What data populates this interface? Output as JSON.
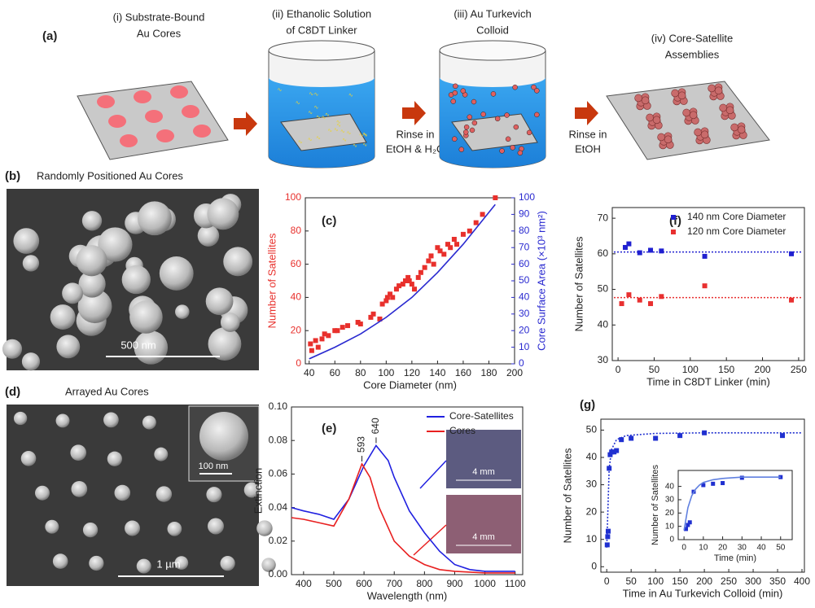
{
  "figure": {
    "a": {
      "panel": "(a)",
      "steps": [
        [
          "(i) Substrate-Bound",
          "Au Cores"
        ],
        [
          "(ii) Ethanolic Solution",
          "of C8DT Linker"
        ],
        [
          "(iii) Au Turkevich",
          "Colloid"
        ],
        [
          "(iv) Core-Satellite",
          "Assemblies"
        ]
      ],
      "rinses": [
        [
          "Rinse in",
          "EtOH & H₂O"
        ],
        [
          "Rinse in",
          "EtOH"
        ]
      ]
    },
    "b": {
      "panel": "(b)",
      "title": "Randomly Positioned Au Cores",
      "scale": "500 nm"
    },
    "d": {
      "panel": "(d)",
      "title": "Arrayed Au Cores",
      "inset_scale": "100 nm",
      "scale": "1 µm"
    }
  },
  "chart_data": [
    {
      "type": "scatter",
      "panel": "(c)",
      "xlabel": "Core Diameter (nm)",
      "ylabel": "Number of Satellites",
      "y2label": "Core Surface Area (×10³ nm²)",
      "ylabel_color": "#e8302c",
      "y2label_color": "#2a2ad0",
      "xlim": [
        37,
        200
      ],
      "xticks": [
        40,
        60,
        80,
        100,
        120,
        140,
        160,
        180,
        200
      ],
      "ylim": [
        0,
        100
      ],
      "yticks": [
        0,
        20,
        40,
        60,
        80,
        100
      ],
      "y2lim": [
        0,
        100
      ],
      "y2ticks": [
        0,
        10,
        20,
        30,
        40,
        50,
        60,
        70,
        80,
        90,
        100
      ],
      "series": [
        {
          "kind": "scatter",
          "color": "#e8302c",
          "x": [
            41,
            42,
            45,
            47,
            50,
            52,
            55,
            60,
            62,
            66,
            70,
            78,
            80,
            88,
            90,
            95,
            97,
            100,
            101,
            103,
            105,
            108,
            110,
            113,
            115,
            117,
            118,
            120,
            122,
            125,
            127,
            130,
            133,
            135,
            137,
            140,
            142,
            145,
            148,
            150,
            153,
            155,
            160,
            165,
            170,
            175,
            185
          ],
          "values": [
            12,
            8,
            14,
            10,
            15,
            18,
            17,
            20,
            20,
            22,
            23,
            25,
            24,
            28,
            30,
            27,
            36,
            38,
            40,
            42,
            40,
            45,
            47,
            48,
            50,
            52,
            50,
            48,
            45,
            52,
            55,
            58,
            62,
            65,
            60,
            70,
            68,
            66,
            72,
            70,
            75,
            72,
            78,
            80,
            85,
            90,
            100
          ]
        },
        {
          "kind": "line",
          "color": "#2a2ad0",
          "axis": "y2",
          "x": [
            40,
            60,
            80,
            100,
            120,
            140,
            160,
            185
          ],
          "values": [
            3,
            10,
            18,
            28,
            40,
            55,
            72,
            96
          ]
        }
      ]
    },
    {
      "type": "line",
      "panel": "(e)",
      "xlabel": "Wavelength (nm)",
      "ylabel": "Extinction",
      "legend": "upper right",
      "xlim": [
        360,
        1125
      ],
      "xticks": [
        400,
        500,
        600,
        700,
        800,
        900,
        1000,
        1100
      ],
      "ylim": [
        0,
        0.1
      ],
      "yticks": [
        {
          "value": 0,
          "label": "0.00"
        },
        {
          "value": 0.02,
          "label": "0.02"
        },
        {
          "value": 0.04,
          "label": "0.04"
        },
        {
          "value": 0.06,
          "label": "0.06"
        },
        {
          "value": 0.08,
          "label": "0.08"
        },
        {
          "value": 0.1,
          "label": "0.10"
        }
      ],
      "series": [
        {
          "name": "Core-Satellites",
          "kind": "line",
          "color": "#2020e0",
          "x": [
            360,
            400,
            450,
            500,
            550,
            600,
            640,
            680,
            700,
            750,
            800,
            850,
            900,
            950,
            1000,
            1100
          ],
          "values": [
            0.04,
            0.038,
            0.036,
            0.033,
            0.045,
            0.065,
            0.077,
            0.068,
            0.058,
            0.038,
            0.025,
            0.014,
            0.006,
            0.003,
            0.002,
            0.002
          ]
        },
        {
          "name": "Cores",
          "kind": "line",
          "color": "#e82020",
          "x": [
            360,
            400,
            450,
            500,
            550,
            593,
            620,
            650,
            700,
            750,
            800,
            850,
            900,
            1000,
            1100
          ],
          "values": [
            0.034,
            0.033,
            0.031,
            0.029,
            0.045,
            0.066,
            0.058,
            0.04,
            0.02,
            0.011,
            0.006,
            0.003,
            0.002,
            0.001,
            0.001
          ]
        }
      ],
      "annotations": [
        {
          "text": "593",
          "x": 593,
          "y": 0.066
        },
        {
          "text": "640",
          "x": 640,
          "y": 0.077
        }
      ],
      "inset_labels": [
        "4 mm",
        "4 mm"
      ]
    },
    {
      "type": "scatter",
      "panel": "(f)",
      "xlabel": "Time in C8DT Linker (min)",
      "ylabel": "Number of Satellites",
      "legend": "upper right",
      "xlim": [
        -8,
        258
      ],
      "xticks": [
        0,
        50,
        100,
        150,
        200,
        250
      ],
      "ylim": [
        30,
        73
      ],
      "yticks": [
        30,
        40,
        50,
        60,
        70
      ],
      "series": [
        {
          "name": "140 nm Core Diameter",
          "kind": "scatter",
          "color": "#2020d0",
          "fit_level": 60.5,
          "x": [
            10,
            15,
            30,
            45,
            60,
            120,
            240
          ],
          "values": [
            61.8,
            62.8,
            60.3,
            61,
            60.8,
            59.3,
            60
          ]
        },
        {
          "name": "120 nm Core Diameter",
          "kind": "scatter",
          "color": "#e83030",
          "fit_level": 47.7,
          "x": [
            5,
            15,
            30,
            45,
            60,
            120,
            240
          ],
          "values": [
            46,
            48.5,
            47,
            46,
            48,
            51,
            47
          ]
        }
      ]
    },
    {
      "type": "scatter",
      "panel": "(g)",
      "xlabel": "Time in Au Turkevich Colloid (min)",
      "ylabel": "Number of Satellites",
      "xlim": [
        -12,
        405
      ],
      "xticks": [
        0,
        50,
        100,
        150,
        200,
        250,
        300,
        350,
        400
      ],
      "ylim": [
        -2,
        54
      ],
      "yticks": [
        0,
        10,
        20,
        30,
        40,
        50
      ],
      "series": [
        {
          "kind": "scatter",
          "color": "#2030d0",
          "x": [
            1,
            2,
            3,
            5,
            7,
            10,
            15,
            20,
            30,
            50,
            100,
            150,
            200,
            360
          ],
          "values": [
            8,
            11,
            13,
            36,
            41,
            42,
            42,
            42.5,
            46.5,
            47,
            47,
            48,
            49,
            48
          ]
        },
        {
          "kind": "line",
          "dash": true,
          "color": "#2030d0",
          "x": [
            0,
            5,
            10,
            20,
            40,
            100,
            200,
            400
          ],
          "values": [
            7,
            36,
            43,
            46.5,
            48,
            48.8,
            49,
            49
          ]
        }
      ]
    },
    {
      "type": "scatter",
      "xlabel": "Time (min)",
      "ylabel": "Number of Satellites",
      "xlim": [
        -3,
        56
      ],
      "xticks": [
        0,
        10,
        20,
        30,
        40,
        50
      ],
      "ylim": [
        0,
        52
      ],
      "yticks": [
        0,
        10,
        20,
        30,
        40
      ],
      "series": [
        {
          "kind": "scatter",
          "color": "#2030d0",
          "x": [
            1,
            2,
            3,
            5,
            10,
            15,
            20,
            30,
            50
          ],
          "values": [
            8,
            11,
            13,
            36,
            41,
            42,
            42.5,
            46.5,
            47
          ]
        },
        {
          "kind": "line",
          "color": "#6080e0",
          "x": [
            0,
            2,
            4,
            6,
            8,
            10,
            15,
            20,
            30,
            50
          ],
          "values": [
            7,
            24,
            33,
            38,
            41,
            43,
            45,
            46,
            47,
            47
          ]
        }
      ]
    }
  ]
}
